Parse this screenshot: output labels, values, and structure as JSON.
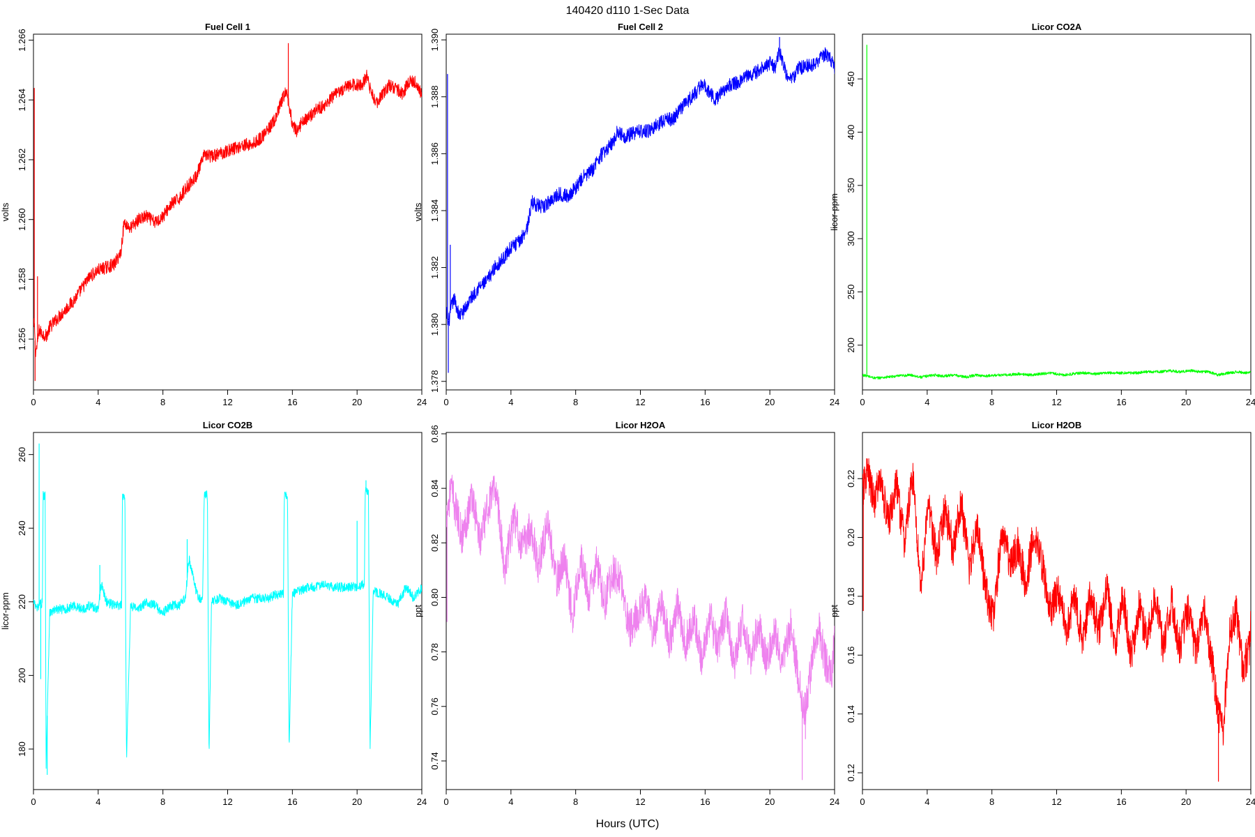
{
  "figure": {
    "title": "140420   d110   1-Sec Data",
    "xlabel": "Hours (UTC)"
  },
  "chart_data": [
    {
      "type": "line",
      "title": "Fuel Cell 1",
      "ylabel": "volts",
      "xlim": [
        0,
        24
      ],
      "ylim": [
        1.2543,
        1.2662
      ],
      "xticks": [
        0,
        4,
        8,
        12,
        16,
        20,
        24
      ],
      "yticks": [
        1.256,
        1.258,
        1.26,
        1.262,
        1.264,
        1.266
      ],
      "ytick_labels": [
        "1.256",
        "1.258",
        "1.260",
        "1.262",
        "1.264",
        "1.266"
      ],
      "color": "#ff0000",
      "noise": 0.00022,
      "x": [
        0,
        0.05,
        0.08,
        0.12,
        0.2,
        0.35,
        0.5,
        0.8,
        1.0,
        1.5,
        2,
        2.5,
        3,
        3.5,
        4,
        4.5,
        5,
        5.4,
        5.6,
        6,
        6.5,
        7,
        7.5,
        8,
        8.5,
        9,
        9.5,
        10,
        10.4,
        10.6,
        11,
        11.5,
        12,
        12.5,
        13,
        13.5,
        14,
        14.5,
        15,
        15.3,
        15.6,
        15.8,
        16,
        16.3,
        16.6,
        17,
        17.5,
        18,
        18.5,
        19,
        19.5,
        20,
        20.3,
        20.6,
        20.9,
        21.2,
        21.6,
        22,
        22.4,
        22.8,
        23.2,
        23.6,
        24
      ],
      "y": [
        1.2565,
        1.2564,
        1.2563,
        1.2556,
        1.2557,
        1.2563,
        1.2562,
        1.2561,
        1.2564,
        1.2567,
        1.257,
        1.2573,
        1.2577,
        1.2581,
        1.2583,
        1.2584,
        1.2585,
        1.2589,
        1.2599,
        1.2597,
        1.26,
        1.2601,
        1.2599,
        1.2601,
        1.2605,
        1.2607,
        1.2611,
        1.2614,
        1.2619,
        1.2622,
        1.2621,
        1.2622,
        1.2623,
        1.2624,
        1.2625,
        1.2625,
        1.2627,
        1.263,
        1.2634,
        1.2639,
        1.2643,
        1.2638,
        1.2632,
        1.2629,
        1.2633,
        1.2634,
        1.2637,
        1.2638,
        1.2641,
        1.2643,
        1.2645,
        1.2645,
        1.2645,
        1.2648,
        1.2642,
        1.2639,
        1.2642,
        1.2645,
        1.2644,
        1.2642,
        1.2646,
        1.2646,
        1.2642
      ],
      "spikes": [
        {
          "x": 0.05,
          "y": 1.2644
        },
        {
          "x": 0.1,
          "y": 1.2546
        },
        {
          "x": 0.25,
          "y": 1.2581
        },
        {
          "x": 15.75,
          "y": 1.2659
        }
      ]
    },
    {
      "type": "line",
      "title": "Fuel Cell 2",
      "ylabel": "volts",
      "xlim": [
        0,
        24
      ],
      "ylim": [
        1.3777,
        1.3902
      ],
      "xticks": [
        0,
        4,
        8,
        12,
        16,
        20,
        24
      ],
      "yticks": [
        1.378,
        1.38,
        1.382,
        1.384,
        1.386,
        1.388,
        1.39
      ],
      "ytick_labels": [
        "1.378",
        "1.380",
        "1.382",
        "1.384",
        "1.386",
        "1.388",
        "1.390"
      ],
      "color": "#0000ff",
      "noise": 0.00025,
      "x": [
        0,
        0.1,
        0.2,
        0.3,
        0.5,
        0.8,
        1.0,
        1.5,
        2,
        2.5,
        3,
        3.5,
        4,
        4.5,
        5,
        5.3,
        5.6,
        6,
        6.5,
        7,
        7.5,
        8,
        8.5,
        9,
        9.5,
        10,
        10.4,
        10.6,
        11,
        11.5,
        12,
        12.5,
        13,
        13.5,
        14,
        14.5,
        15,
        15.5,
        15.9,
        16.3,
        16.7,
        17,
        17.5,
        18,
        18.5,
        19,
        19.5,
        20,
        20.3,
        20.6,
        21,
        21.4,
        21.8,
        22.2,
        22.6,
        23,
        23.4,
        23.8,
        24
      ],
      "y": [
        1.3805,
        1.3801,
        1.3802,
        1.3806,
        1.3809,
        1.3803,
        1.3804,
        1.3809,
        1.3813,
        1.3815,
        1.382,
        1.3823,
        1.3827,
        1.3829,
        1.3834,
        1.3843,
        1.3842,
        1.3841,
        1.3844,
        1.3846,
        1.3845,
        1.3848,
        1.3852,
        1.3854,
        1.3859,
        1.3862,
        1.3865,
        1.3868,
        1.3866,
        1.3867,
        1.3868,
        1.3868,
        1.387,
        1.3872,
        1.3872,
        1.3876,
        1.3879,
        1.3882,
        1.3885,
        1.3881,
        1.3879,
        1.3882,
        1.3884,
        1.3885,
        1.3887,
        1.3888,
        1.389,
        1.3892,
        1.389,
        1.3896,
        1.3888,
        1.3886,
        1.389,
        1.3891,
        1.3891,
        1.3893,
        1.3895,
        1.3893,
        1.389
      ],
      "spikes": [
        {
          "x": 0.08,
          "y": 1.3888
        },
        {
          "x": 0.13,
          "y": 1.3783
        },
        {
          "x": 0.25,
          "y": 1.3828
        },
        {
          "x": 20.6,
          "y": 1.3901
        }
      ]
    },
    {
      "type": "line",
      "title": "Licor CO2A",
      "ylabel": "licor-ppm",
      "xlim": [
        0,
        24
      ],
      "ylim": [
        158,
        492
      ],
      "xticks": [
        0,
        4,
        8,
        12,
        16,
        20,
        24
      ],
      "yticks": [
        200,
        250,
        300,
        350,
        400,
        450
      ],
      "ytick_labels": [
        "200",
        "250",
        "300",
        "350",
        "400",
        "450"
      ],
      "color": "#00ff00",
      "noise": 1.3,
      "x": [
        0,
        0.3,
        0.8,
        1.5,
        2.2,
        3,
        3.6,
        4.4,
        5,
        5.6,
        6.4,
        7,
        7.6,
        8.4,
        9,
        9.6,
        10.4,
        11,
        11.6,
        12.4,
        13,
        13.6,
        14.4,
        15,
        15.6,
        16.4,
        17,
        17.6,
        18.4,
        19,
        19.6,
        20.3,
        20.8,
        21.4,
        22,
        22.6,
        23.2,
        23.6,
        24
      ],
      "y": [
        172,
        171,
        169,
        170,
        171,
        172,
        170,
        172,
        171,
        172,
        170,
        172,
        171,
        172,
        172,
        173,
        172,
        173,
        174,
        172,
        173,
        174,
        173,
        174,
        174,
        174,
        174,
        175,
        175,
        176,
        175,
        176,
        175,
        175,
        172,
        174,
        175,
        174,
        175
      ],
      "spikes": [
        {
          "x": 0.27,
          "y": 482
        }
      ]
    },
    {
      "type": "line",
      "title": "Licor CO2B",
      "ylabel": "licor-ppm",
      "xlim": [
        0,
        24
      ],
      "ylim": [
        169,
        266
      ],
      "xticks": [
        0,
        4,
        8,
        12,
        16,
        20,
        24
      ],
      "yticks": [
        180,
        200,
        220,
        240,
        260
      ],
      "ytick_labels": [
        "180",
        "200",
        "220",
        "240",
        "260"
      ],
      "color": "#00ffff",
      "noise": 1.3,
      "x": [
        0,
        0.2,
        0.55,
        0.6,
        0.72,
        0.78,
        1.0,
        1.5,
        2,
        2.5,
        3,
        3.5,
        4,
        4.2,
        4.5,
        5,
        5.45,
        5.5,
        5.65,
        5.75,
        6,
        6.5,
        7,
        7.5,
        8,
        8.5,
        9,
        9.4,
        9.6,
        10.1,
        10.45,
        10.55,
        10.75,
        10.85,
        11,
        11.5,
        12,
        12.5,
        13,
        13.5,
        14,
        14.5,
        15,
        15.45,
        15.5,
        15.7,
        15.8,
        16,
        16.5,
        17,
        17.5,
        18,
        18.5,
        19,
        19.5,
        20,
        20.45,
        20.5,
        20.7,
        20.8,
        21,
        21.5,
        22,
        22.5,
        23,
        23.5,
        24
      ],
      "y": [
        220,
        218,
        220,
        249,
        249,
        176,
        217,
        218,
        218,
        219,
        218,
        219,
        218,
        225,
        220,
        219,
        219,
        249,
        249,
        177,
        219,
        218,
        220,
        219,
        217,
        219,
        219,
        221,
        232,
        222,
        220,
        249,
        249,
        178,
        220,
        221,
        220,
        219,
        220,
        221,
        221,
        221,
        222,
        222,
        249,
        249,
        179,
        222,
        223,
        224,
        224,
        225,
        224,
        224,
        224,
        224,
        225,
        250,
        250,
        179,
        223,
        222,
        221,
        219,
        224,
        221,
        224
      ],
      "spikes": [
        {
          "x": 0.35,
          "y": 263
        },
        {
          "x": 0.45,
          "y": 199
        },
        {
          "x": 0.85,
          "y": 173
        },
        {
          "x": 4.1,
          "y": 230
        },
        {
          "x": 9.5,
          "y": 237
        },
        {
          "x": 20.0,
          "y": 242
        },
        {
          "x": 20.55,
          "y": 253
        }
      ]
    },
    {
      "type": "line",
      "title": "Licor H2OA",
      "ylabel": "ppt",
      "xlim": [
        0,
        24
      ],
      "ylim": [
        0.7295,
        0.8605
      ],
      "xticks": [
        0,
        4,
        8,
        12,
        16,
        20,
        24
      ],
      "yticks": [
        0.74,
        0.76,
        0.78,
        0.8,
        0.82,
        0.84,
        0.86
      ],
      "ytick_labels": [
        "0.74",
        "0.76",
        "0.78",
        "0.80",
        "0.82",
        "0.84",
        "0.86"
      ],
      "color": "#ee82ee",
      "noise": 0.007,
      "x": [
        0,
        0.3,
        0.6,
        1.0,
        1.6,
        2.1,
        2.6,
        3.1,
        3.6,
        4.2,
        4.7,
        5.2,
        5.7,
        6.3,
        6.8,
        7.3,
        7.8,
        8.3,
        8.8,
        9.3,
        9.8,
        10.3,
        10.8,
        11.3,
        11.8,
        12.3,
        12.8,
        13.3,
        13.8,
        14.3,
        14.8,
        15.3,
        15.8,
        16.3,
        16.8,
        17.3,
        17.8,
        18.3,
        18.8,
        19.3,
        19.8,
        20.3,
        20.8,
        21.3,
        21.8,
        22.2,
        22.6,
        23.0,
        23.4,
        23.8,
        24
      ],
      "y": [
        0.83,
        0.84,
        0.832,
        0.822,
        0.838,
        0.82,
        0.834,
        0.84,
        0.81,
        0.83,
        0.818,
        0.826,
        0.812,
        0.828,
        0.805,
        0.815,
        0.793,
        0.815,
        0.8,
        0.812,
        0.798,
        0.81,
        0.805,
        0.788,
        0.793,
        0.8,
        0.786,
        0.798,
        0.784,
        0.797,
        0.783,
        0.793,
        0.776,
        0.793,
        0.781,
        0.795,
        0.776,
        0.791,
        0.778,
        0.79,
        0.777,
        0.788,
        0.776,
        0.79,
        0.768,
        0.758,
        0.776,
        0.79,
        0.777,
        0.77,
        0.786
      ],
      "spikes": [
        {
          "x": 0.05,
          "y": 0.791
        },
        {
          "x": 22.0,
          "y": 0.733
        },
        {
          "x": 22.2,
          "y": 0.748
        }
      ]
    },
    {
      "type": "line",
      "title": "Licor H2OB",
      "ylabel": "ppt",
      "xlim": [
        0,
        24
      ],
      "ylim": [
        0.1143,
        0.2357
      ],
      "xticks": [
        0,
        4,
        8,
        12,
        16,
        20,
        24
      ],
      "yticks": [
        0.12,
        0.14,
        0.16,
        0.18,
        0.2,
        0.22
      ],
      "ytick_labels": [
        "0.12",
        "0.14",
        "0.16",
        "0.18",
        "0.20",
        "0.22"
      ],
      "color": "#ff0000",
      "noise": 0.0065,
      "x": [
        0,
        0.3,
        0.7,
        1.1,
        1.6,
        2.1,
        2.6,
        3.1,
        3.6,
        4.1,
        4.6,
        5.1,
        5.6,
        6.1,
        6.6,
        7.1,
        7.6,
        8.1,
        8.6,
        9.1,
        9.6,
        10.1,
        10.6,
        11.1,
        11.6,
        12.1,
        12.6,
        13.1,
        13.6,
        14.1,
        14.6,
        15.1,
        15.6,
        16.1,
        16.6,
        17.1,
        17.6,
        18.1,
        18.6,
        19.1,
        19.6,
        20.1,
        20.6,
        21.1,
        21.6,
        22.0,
        22.3,
        22.7,
        23.1,
        23.5,
        23.9,
        24
      ],
      "y": [
        0.215,
        0.223,
        0.212,
        0.22,
        0.205,
        0.218,
        0.198,
        0.222,
        0.183,
        0.212,
        0.192,
        0.21,
        0.196,
        0.212,
        0.19,
        0.205,
        0.182,
        0.172,
        0.202,
        0.192,
        0.197,
        0.184,
        0.203,
        0.191,
        0.175,
        0.182,
        0.168,
        0.18,
        0.165,
        0.181,
        0.168,
        0.183,
        0.163,
        0.18,
        0.16,
        0.176,
        0.166,
        0.18,
        0.162,
        0.178,
        0.163,
        0.175,
        0.162,
        0.176,
        0.158,
        0.14,
        0.135,
        0.168,
        0.175,
        0.155,
        0.162,
        0.17
      ],
      "spikes": [
        {
          "x": 0.05,
          "y": 0.175
        },
        {
          "x": 22.0,
          "y": 0.117
        }
      ]
    }
  ]
}
